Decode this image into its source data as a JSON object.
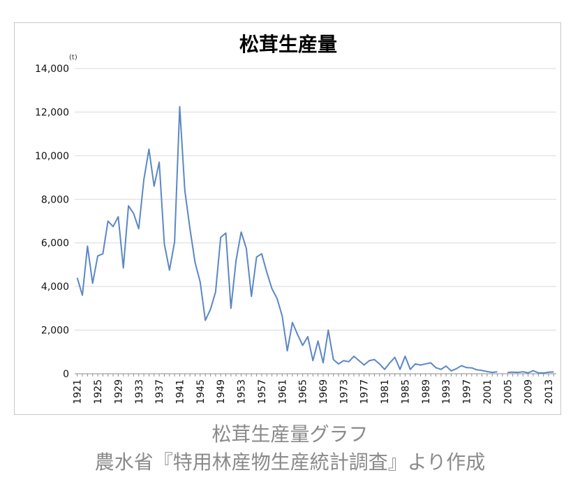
{
  "chart_data": {
    "type": "line",
    "title": "松茸生産量",
    "unit_label": "(t)",
    "ylim": [
      0,
      14000
    ],
    "y_ticks": [
      0,
      2000,
      4000,
      6000,
      8000,
      10000,
      12000,
      14000
    ],
    "y_tick_labels": [
      "0",
      "2,000",
      "4,000",
      "6,000",
      "8,000",
      "10,000",
      "12,000",
      "14,000"
    ],
    "x_tick_labels": [
      "1921",
      "1925",
      "1929",
      "1933",
      "1937",
      "1941",
      "1945",
      "1949",
      "1953",
      "1957",
      "1961",
      "1965",
      "1969",
      "1973",
      "1977",
      "1981",
      "1985",
      "1989",
      "1993",
      "1997",
      "2001",
      "2005",
      "2009",
      "2013"
    ],
    "xlim": [
      1920.5,
      2014.5
    ],
    "grid": true,
    "series": [
      {
        "color": "#5b87c5",
        "x": [
          1921,
          1922,
          1923,
          1924,
          1925,
          1926,
          1927,
          1928,
          1929,
          1930,
          1931,
          1932,
          1933,
          1934,
          1935,
          1936,
          1937,
          1938,
          1939,
          1940,
          1941,
          1942,
          1943,
          1944,
          1945,
          1946,
          1947,
          1948,
          1949,
          1950,
          1951,
          1952,
          1953,
          1954,
          1955,
          1956,
          1957,
          1958,
          1959,
          1960,
          1961,
          1962,
          1963,
          1964,
          1965,
          1966,
          1967,
          1968,
          1969,
          1970,
          1971,
          1972,
          1973,
          1974,
          1975,
          1976,
          1977,
          1978,
          1979,
          1980,
          1981,
          1982,
          1983,
          1984,
          1985,
          1986,
          1987,
          1988,
          1989,
          1990,
          1991,
          1992,
          1993,
          1994,
          1995,
          1996,
          1997,
          1998,
          1999,
          2000,
          2001,
          2002,
          2003
        ],
        "values": [
          4400,
          3600,
          5850,
          4150,
          5400,
          5500,
          7000,
          6750,
          7200,
          4850,
          7700,
          7350,
          6650,
          8900,
          10300,
          8600,
          9700,
          5950,
          4750,
          6050,
          12250,
          8400,
          6650,
          5100,
          4200,
          2450,
          2950,
          3750,
          6250,
          6450,
          3000,
          5200,
          6500,
          5750,
          3550,
          5350,
          5500,
          4650,
          3900,
          3450,
          2650,
          1050,
          2350,
          1800,
          1300,
          1700,
          600,
          1500,
          500,
          2000,
          650,
          450,
          600,
          550,
          800,
          600,
          400,
          600,
          650,
          450,
          200,
          500,
          750,
          200,
          800,
          200,
          450,
          400,
          450,
          500,
          280,
          200,
          350,
          130,
          230,
          370,
          280,
          270,
          180,
          150,
          100,
          60,
          90
        ]
      },
      {
        "color": "#5b87c5",
        "x": [
          2005,
          2006,
          2007,
          2008,
          2009,
          2010,
          2011,
          2012,
          2013,
          2014
        ],
        "values": [
          60,
          70,
          60,
          90,
          40,
          140,
          40,
          30,
          70,
          80
        ]
      }
    ]
  },
  "caption": {
    "line1": "松茸生産量グラフ",
    "line2": "農水省『特用林産物生産統計調査』より作成"
  }
}
